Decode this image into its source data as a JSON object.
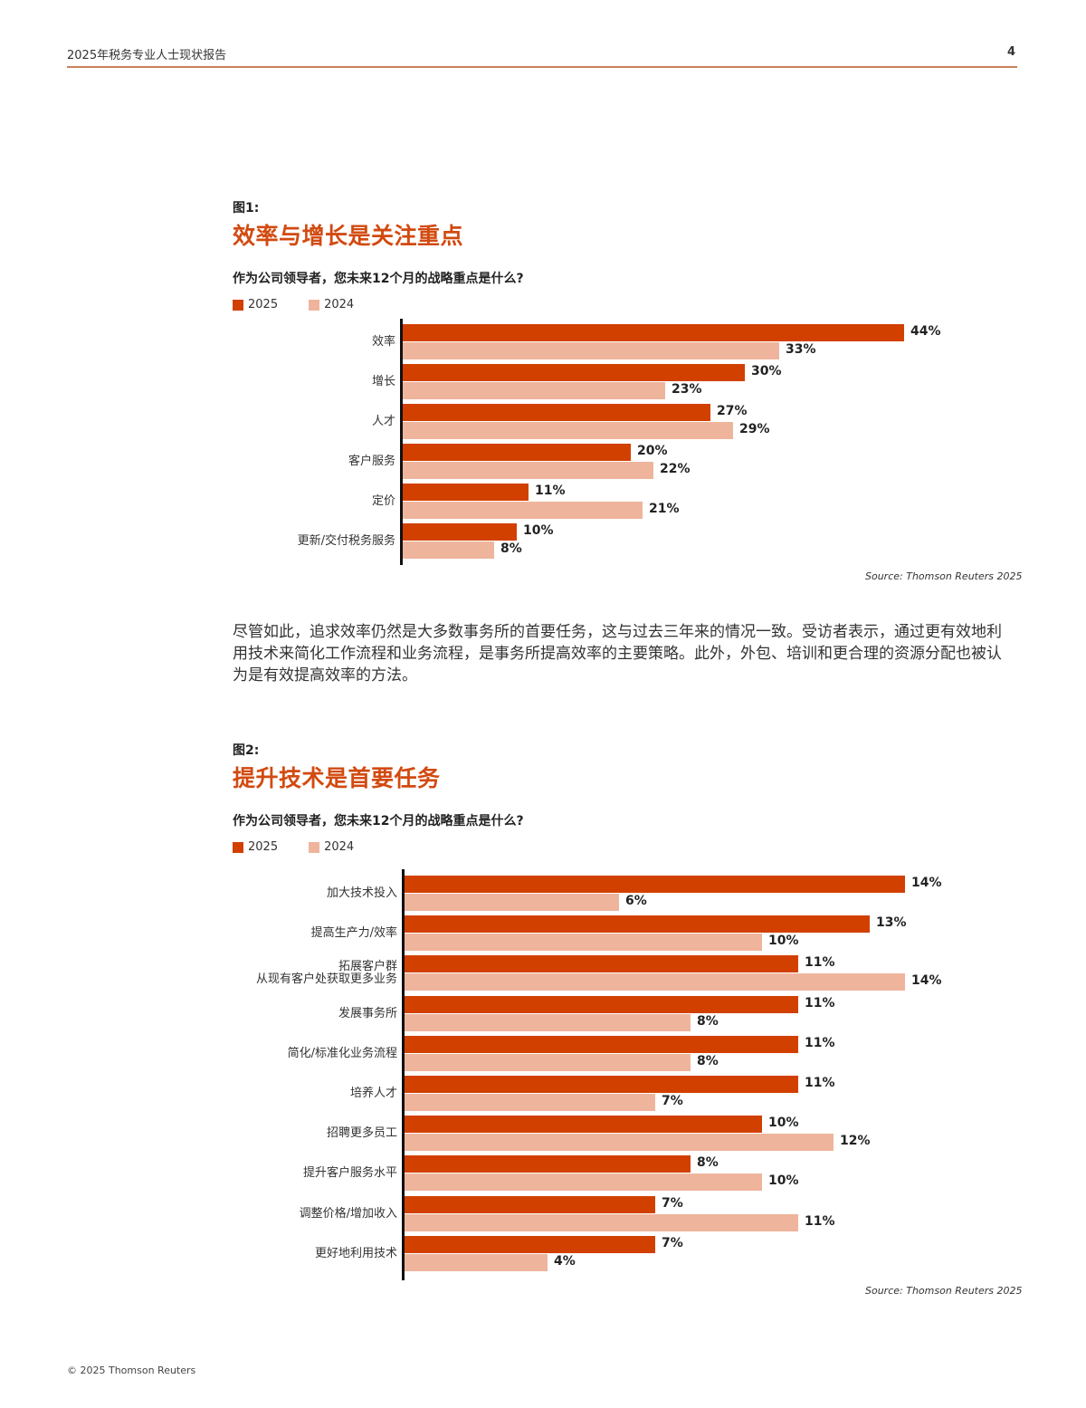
{
  "header": {
    "title": "2025年税务专业人士现状报告",
    "page_number": "4"
  },
  "figure1": {
    "label": "图1:",
    "title": "效率与增长是关注重点",
    "question": "作为公司领导者，您未来12个月的战略重点是什么?",
    "legend": [
      {
        "label": "2025",
        "color": "#d24000"
      },
      {
        "label": "2024",
        "color": "#efb49c"
      }
    ],
    "source": "Source: Thomson Reuters 2025"
  },
  "paragraph": "尽管如此，追求效率仍然是大多数事务所的首要任务，这与过去三年来的情况一致。受访者表示，通过更有效地利用技术来简化工作流程和业务流程，是事务所提高效率的主要策略。此外，外包、培训和更合理的资源分配也被认为是有效提高效率的方法。",
  "figure2": {
    "label": "图2:",
    "title": "提升技术是首要任务",
    "question": "作为公司领导者，您未来12个月的战略重点是什么?",
    "legend": [
      {
        "label": "2025",
        "color": "#d24000"
      },
      {
        "label": "2024",
        "color": "#efb49c"
      }
    ],
    "source": "Source: Thomson Reuters 2025"
  },
  "footer": {
    "copyright": "© 2025 Thomson Reuters"
  },
  "chart_data": [
    {
      "type": "bar",
      "orientation": "horizontal",
      "title": "效率与增长是关注重点",
      "subtitle": "作为公司领导者，您未来12个月的战略重点是什么?",
      "categories": [
        "效率",
        "增长",
        "人才",
        "客户服务",
        "定价",
        "更新/交付税务服务"
      ],
      "series": [
        {
          "name": "2025",
          "color": "#d24000",
          "values": [
            44,
            30,
            27,
            20,
            11,
            10
          ]
        },
        {
          "name": "2024",
          "color": "#efb49c",
          "values": [
            33,
            23,
            29,
            22,
            21,
            8
          ]
        }
      ],
      "value_labels": {
        "2025": [
          "44%",
          "30%",
          "27%",
          "20%",
          "11%",
          "10%"
        ],
        "2024": [
          "33%",
          "23%",
          "29%",
          "22%",
          "21%",
          "8%"
        ]
      },
      "xlabel": "",
      "ylabel": "",
      "grid": false,
      "legend_position": "top-left",
      "annotations": [
        "Source: Thomson Reuters 2025"
      ]
    },
    {
      "type": "bar",
      "orientation": "horizontal",
      "title": "提升技术是首要任务",
      "subtitle": "作为公司领导者，您未来12个月的战略重点是什么?",
      "categories": [
        "加大技术投入",
        "提高生产力/效率",
        "拓展客户群\n从现有客户处获取更多业务",
        "发展事务所",
        "简化/标准化业务流程",
        "培养人才",
        "招聘更多员工",
        "提升客户服务水平",
        "调整价格/增加收入",
        "更好地利用技术"
      ],
      "series": [
        {
          "name": "2025",
          "color": "#d24000",
          "values": [
            14,
            13,
            11,
            11,
            11,
            11,
            10,
            8,
            7,
            7
          ]
        },
        {
          "name": "2024",
          "color": "#efb49c",
          "values": [
            6,
            10,
            14,
            8,
            8,
            7,
            12,
            10,
            11,
            4
          ]
        }
      ],
      "value_labels": {
        "2025": [
          "14%",
          "13%",
          "11%",
          "11%",
          "11%",
          "11%",
          "10%",
          "8%",
          "7%",
          "7%"
        ],
        "2024": [
          "6%",
          "10%",
          "14%",
          "8%",
          "8%",
          "7%",
          "12%",
          "10%",
          "11%",
          "4%"
        ]
      },
      "xlabel": "",
      "ylabel": "",
      "grid": false,
      "legend_position": "top-left",
      "annotations": [
        "Source: Thomson Reuters 2025"
      ]
    }
  ]
}
